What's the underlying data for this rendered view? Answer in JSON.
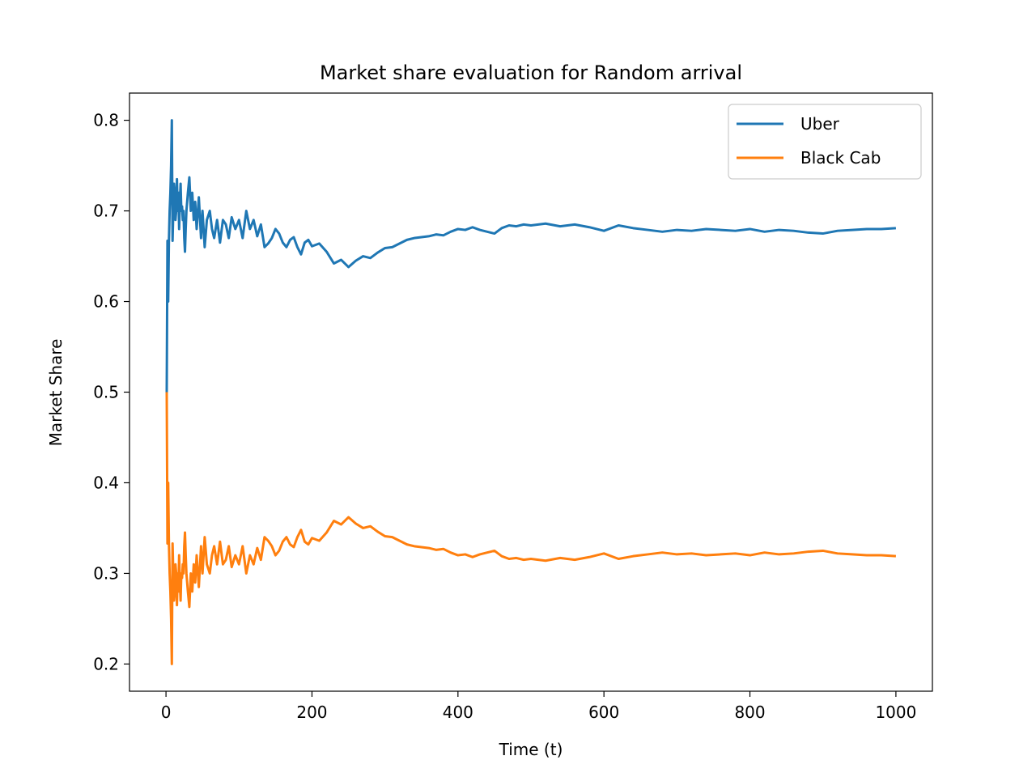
{
  "chart_data": {
    "type": "line",
    "title": "Market share evaluation for Random arrival",
    "xlabel": "Time (t)",
    "ylabel": "Market Share",
    "xlim": [
      -50,
      1050
    ],
    "ylim": [
      0.17,
      0.83
    ],
    "xticks": [
      0,
      200,
      400,
      600,
      800,
      1000
    ],
    "yticks": [
      0.2,
      0.3,
      0.4,
      0.5,
      0.6,
      0.7,
      0.8
    ],
    "grid": false,
    "legend_position": "top-right",
    "series": [
      {
        "name": "Uber",
        "color": "#1f77b4",
        "x": [
          1,
          2,
          3,
          4,
          5,
          6,
          7,
          8,
          9,
          10,
          11,
          12,
          13,
          14,
          15,
          16,
          17,
          18,
          19,
          20,
          21,
          22,
          23,
          24,
          25,
          26,
          27,
          28,
          30,
          32,
          34,
          36,
          38,
          40,
          42,
          45,
          48,
          50,
          53,
          56,
          60,
          63,
          66,
          70,
          74,
          78,
          82,
          86,
          90,
          95,
          100,
          105,
          110,
          115,
          120,
          125,
          130,
          135,
          140,
          145,
          150,
          155,
          160,
          165,
          170,
          175,
          180,
          185,
          190,
          195,
          200,
          210,
          220,
          230,
          240,
          250,
          260,
          270,
          280,
          290,
          300,
          310,
          320,
          330,
          340,
          350,
          360,
          370,
          380,
          390,
          400,
          410,
          420,
          430,
          440,
          450,
          460,
          470,
          480,
          490,
          500,
          520,
          540,
          560,
          580,
          600,
          620,
          640,
          660,
          680,
          700,
          720,
          740,
          760,
          780,
          800,
          820,
          840,
          860,
          880,
          900,
          920,
          940,
          960,
          980,
          1000
        ],
        "values": [
          0.5,
          0.667,
          0.6,
          0.667,
          0.7,
          0.72,
          0.75,
          0.8,
          0.667,
          0.7,
          0.73,
          0.72,
          0.69,
          0.7,
          0.735,
          0.7,
          0.72,
          0.68,
          0.71,
          0.73,
          0.7,
          0.705,
          0.69,
          0.7,
          0.67,
          0.655,
          0.68,
          0.7,
          0.72,
          0.737,
          0.7,
          0.72,
          0.69,
          0.71,
          0.68,
          0.715,
          0.67,
          0.7,
          0.66,
          0.69,
          0.7,
          0.68,
          0.67,
          0.69,
          0.665,
          0.69,
          0.685,
          0.67,
          0.693,
          0.68,
          0.69,
          0.67,
          0.7,
          0.68,
          0.69,
          0.672,
          0.685,
          0.66,
          0.664,
          0.67,
          0.68,
          0.675,
          0.665,
          0.66,
          0.668,
          0.671,
          0.66,
          0.652,
          0.665,
          0.668,
          0.661,
          0.664,
          0.655,
          0.642,
          0.646,
          0.638,
          0.645,
          0.65,
          0.648,
          0.654,
          0.659,
          0.66,
          0.664,
          0.668,
          0.67,
          0.671,
          0.672,
          0.674,
          0.673,
          0.677,
          0.68,
          0.679,
          0.682,
          0.679,
          0.677,
          0.675,
          0.681,
          0.684,
          0.683,
          0.685,
          0.684,
          0.686,
          0.683,
          0.685,
          0.682,
          0.678,
          0.684,
          0.681,
          0.679,
          0.677,
          0.679,
          0.678,
          0.68,
          0.679,
          0.678,
          0.68,
          0.677,
          0.679,
          0.678,
          0.676,
          0.675,
          0.678,
          0.679,
          0.68,
          0.68,
          0.681
        ]
      },
      {
        "name": "Black Cab",
        "color": "#ff7f0e",
        "x": [
          1,
          2,
          3,
          4,
          5,
          6,
          7,
          8,
          9,
          10,
          11,
          12,
          13,
          14,
          15,
          16,
          17,
          18,
          19,
          20,
          21,
          22,
          23,
          24,
          25,
          26,
          27,
          28,
          30,
          32,
          34,
          36,
          38,
          40,
          42,
          45,
          48,
          50,
          53,
          56,
          60,
          63,
          66,
          70,
          74,
          78,
          82,
          86,
          90,
          95,
          100,
          105,
          110,
          115,
          120,
          125,
          130,
          135,
          140,
          145,
          150,
          155,
          160,
          165,
          170,
          175,
          180,
          185,
          190,
          195,
          200,
          210,
          220,
          230,
          240,
          250,
          260,
          270,
          280,
          290,
          300,
          310,
          320,
          330,
          340,
          350,
          360,
          370,
          380,
          390,
          400,
          410,
          420,
          430,
          440,
          450,
          460,
          470,
          480,
          490,
          500,
          520,
          540,
          560,
          580,
          600,
          620,
          640,
          660,
          680,
          700,
          720,
          740,
          760,
          780,
          800,
          820,
          840,
          860,
          880,
          900,
          920,
          940,
          960,
          980,
          1000
        ],
        "values": [
          0.5,
          0.333,
          0.4,
          0.333,
          0.3,
          0.28,
          0.25,
          0.2,
          0.333,
          0.3,
          0.27,
          0.28,
          0.31,
          0.3,
          0.265,
          0.3,
          0.28,
          0.32,
          0.29,
          0.27,
          0.3,
          0.295,
          0.31,
          0.3,
          0.33,
          0.345,
          0.32,
          0.3,
          0.28,
          0.263,
          0.3,
          0.28,
          0.31,
          0.29,
          0.32,
          0.285,
          0.33,
          0.3,
          0.34,
          0.31,
          0.3,
          0.32,
          0.33,
          0.31,
          0.335,
          0.31,
          0.315,
          0.33,
          0.307,
          0.32,
          0.31,
          0.33,
          0.3,
          0.32,
          0.31,
          0.328,
          0.315,
          0.34,
          0.336,
          0.33,
          0.32,
          0.325,
          0.335,
          0.34,
          0.332,
          0.329,
          0.34,
          0.348,
          0.335,
          0.332,
          0.339,
          0.336,
          0.345,
          0.358,
          0.354,
          0.362,
          0.355,
          0.35,
          0.352,
          0.346,
          0.341,
          0.34,
          0.336,
          0.332,
          0.33,
          0.329,
          0.328,
          0.326,
          0.327,
          0.323,
          0.32,
          0.321,
          0.318,
          0.321,
          0.323,
          0.325,
          0.319,
          0.316,
          0.317,
          0.315,
          0.316,
          0.314,
          0.317,
          0.315,
          0.318,
          0.322,
          0.316,
          0.319,
          0.321,
          0.323,
          0.321,
          0.322,
          0.32,
          0.321,
          0.322,
          0.32,
          0.323,
          0.321,
          0.322,
          0.324,
          0.325,
          0.322,
          0.321,
          0.32,
          0.32,
          0.319
        ]
      }
    ]
  }
}
